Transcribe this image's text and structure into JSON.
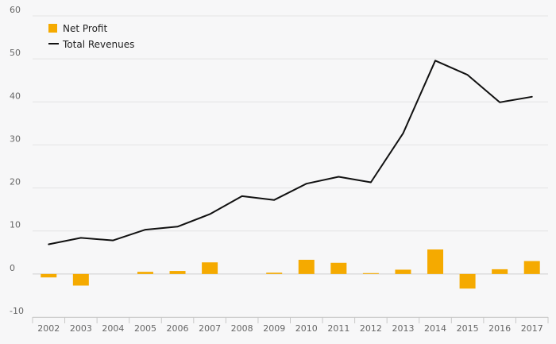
{
  "chart_data": {
    "type": "bar+line",
    "categories": [
      "2002",
      "2003",
      "2004",
      "2005",
      "2006",
      "2007",
      "2008",
      "2009",
      "2010",
      "2011",
      "2012",
      "2013",
      "2014",
      "2015",
      "2016",
      "2017"
    ],
    "series": [
      {
        "name": "Net Profit",
        "type": "bar",
        "color": "#f5aa00",
        "values": [
          -0.8,
          -2.7,
          0.0,
          0.5,
          0.7,
          2.7,
          0.0,
          0.3,
          3.3,
          2.6,
          0.2,
          1.0,
          5.7,
          -3.4,
          1.1,
          3.0
        ]
      },
      {
        "name": "Total Revenues",
        "type": "line",
        "color": "#111111",
        "values": [
          6.9,
          8.4,
          7.8,
          10.3,
          11.0,
          13.9,
          18.1,
          17.2,
          21.0,
          22.6,
          21.3,
          32.7,
          49.6,
          46.3,
          39.9,
          41.2
        ]
      }
    ],
    "yticks": [
      -10,
      0,
      10,
      20,
      30,
      40,
      50,
      60
    ],
    "ylim": [
      -10,
      60
    ],
    "grid": true,
    "legend_position": "top-left"
  }
}
